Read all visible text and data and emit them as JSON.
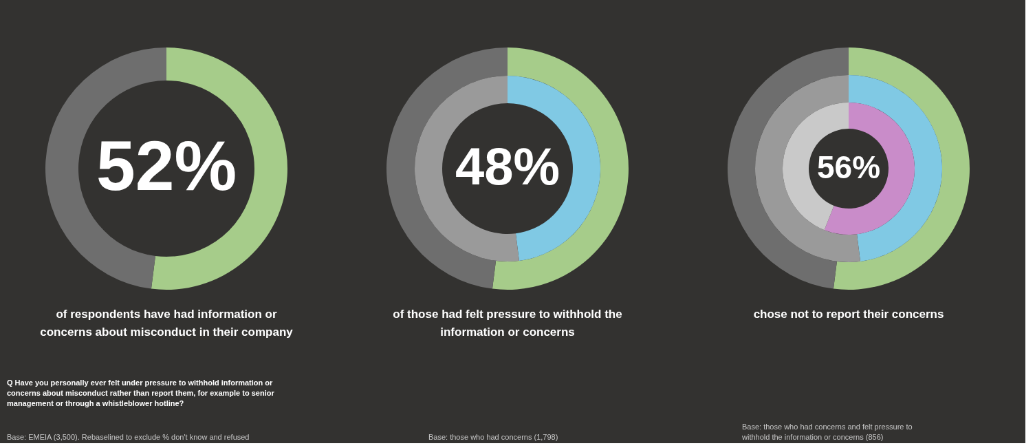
{
  "chart_data": [
    {
      "type": "donut",
      "series": [
        {
          "values": [
            52,
            48
          ],
          "colors": [
            "#a6cc8a",
            "#6e6e6e"
          ],
          "value_labels": [
            "52%",
            null
          ]
        }
      ],
      "annotations": [
        "of respondents have had information or concerns about misconduct in their company",
        "Q Have you personally ever felt under pressure to withhold information or concerns about misconduct rather than report them, for example to senior management or through a whistleblower hotline?",
        "Base: EMEIA (3,500). Rebaselined to exclude % don't know and refused"
      ]
    },
    {
      "type": "donut",
      "series": [
        {
          "values": [
            52,
            48
          ],
          "colors": [
            "#a6cc8a",
            "#6e6e6e"
          ]
        },
        {
          "values": [
            48,
            52
          ],
          "colors": [
            "#80c9e4",
            "#9a9a9a"
          ],
          "value_labels": [
            "48%",
            null
          ]
        }
      ],
      "annotations": [
        "of those had felt pressure to withhold the information or concerns",
        "Base: those who had concerns (1,798)"
      ]
    },
    {
      "type": "donut",
      "series": [
        {
          "values": [
            52,
            48
          ],
          "colors": [
            "#a6cc8a",
            "#6e6e6e"
          ]
        },
        {
          "values": [
            48,
            52
          ],
          "colors": [
            "#80c9e4",
            "#9a9a9a"
          ]
        },
        {
          "values": [
            56,
            44
          ],
          "colors": [
            "#c98cc9",
            "#c9c9c9"
          ],
          "value_labels": [
            "56%",
            null
          ]
        }
      ],
      "annotations": [
        "chose not to report their concerns",
        "Base: those who had concerns and felt pressure to withhold the information or concerns (856)"
      ]
    }
  ]
}
